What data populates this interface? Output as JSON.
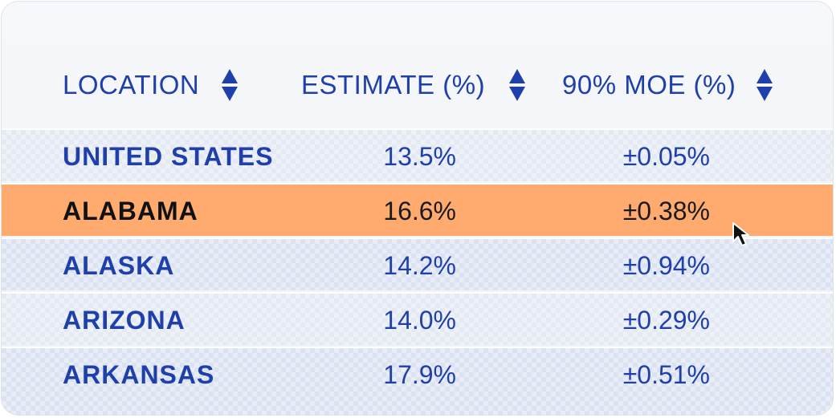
{
  "table": {
    "headers": {
      "location": "LOCATION",
      "estimate": "ESTIMATE (%)",
      "moe": "90% MOE (%)"
    },
    "rows": [
      {
        "location": "UNITED STATES",
        "estimate": "13.5%",
        "moe": "±0.05%"
      },
      {
        "location": "ALABAMA",
        "estimate": "16.6%",
        "moe": "±0.38%"
      },
      {
        "location": "ALASKA",
        "estimate": "14.2%",
        "moe": "±0.94%"
      },
      {
        "location": "ARIZONA",
        "estimate": "14.0%",
        "moe": "±0.29%"
      },
      {
        "location": "ARKANSAS",
        "estimate": "17.9%",
        "moe": "±0.51%"
      }
    ],
    "highlighted_row": 1
  },
  "colors": {
    "text_primary": "#1f3faa",
    "highlight": "#ffab70",
    "row_bg": "#e4e9f4"
  },
  "icons": {
    "sort": "sort-updown-icon",
    "cursor": "mouse-pointer-icon"
  }
}
